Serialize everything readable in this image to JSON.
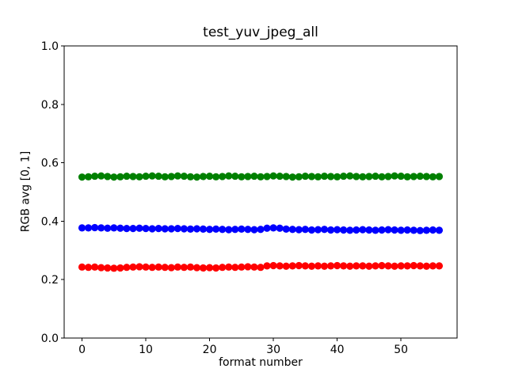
{
  "chart_data": {
    "type": "scatter",
    "title": "test_yuv_jpeg_all",
    "xlabel": "format number",
    "ylabel": "RGB avg [0, 1]",
    "xlim": [
      -2.8,
      58.8
    ],
    "ylim": [
      0.0,
      1.0
    ],
    "xticks": [
      "0",
      "10",
      "20",
      "30",
      "40",
      "50"
    ],
    "yticks": [
      "0.0",
      "0.2",
      "0.4",
      "0.6",
      "0.8",
      "1.0"
    ],
    "grid": false,
    "legend": "none",
    "marker": "o",
    "background_color": "#ffffff",
    "axis_color": "#000000",
    "x": [
      0,
      1,
      2,
      3,
      4,
      5,
      6,
      7,
      8,
      9,
      10,
      11,
      12,
      13,
      14,
      15,
      16,
      17,
      18,
      19,
      20,
      21,
      22,
      23,
      24,
      25,
      26,
      27,
      28,
      29,
      30,
      31,
      32,
      33,
      34,
      35,
      36,
      37,
      38,
      39,
      40,
      41,
      42,
      43,
      44,
      45,
      46,
      47,
      48,
      49,
      50,
      51,
      52,
      53,
      54,
      55,
      56
    ],
    "series": [
      {
        "name": "green",
        "color": "#008000",
        "values": [
          0.551,
          0.552,
          0.554,
          0.555,
          0.553,
          0.551,
          0.552,
          0.554,
          0.553,
          0.552,
          0.554,
          0.555,
          0.554,
          0.552,
          0.553,
          0.555,
          0.554,
          0.552,
          0.551,
          0.553,
          0.554,
          0.552,
          0.553,
          0.555,
          0.554,
          0.552,
          0.553,
          0.554,
          0.552,
          0.553,
          0.555,
          0.554,
          0.553,
          0.551,
          0.552,
          0.554,
          0.553,
          0.552,
          0.554,
          0.553,
          0.552,
          0.554,
          0.555,
          0.553,
          0.552,
          0.553,
          0.554,
          0.552,
          0.553,
          0.555,
          0.554,
          0.552,
          0.553,
          0.554,
          0.553,
          0.552,
          0.553
        ]
      },
      {
        "name": "blue",
        "color": "#0000ff",
        "values": [
          0.377,
          0.377,
          0.378,
          0.377,
          0.376,
          0.377,
          0.376,
          0.375,
          0.375,
          0.376,
          0.375,
          0.374,
          0.375,
          0.374,
          0.374,
          0.375,
          0.374,
          0.373,
          0.374,
          0.373,
          0.372,
          0.373,
          0.372,
          0.371,
          0.372,
          0.373,
          0.372,
          0.371,
          0.372,
          0.376,
          0.377,
          0.376,
          0.373,
          0.372,
          0.371,
          0.372,
          0.37,
          0.371,
          0.372,
          0.37,
          0.371,
          0.37,
          0.369,
          0.37,
          0.371,
          0.37,
          0.369,
          0.37,
          0.371,
          0.37,
          0.369,
          0.37,
          0.369,
          0.368,
          0.369,
          0.37,
          0.369
        ]
      },
      {
        "name": "red",
        "color": "#ff0000",
        "values": [
          0.243,
          0.242,
          0.243,
          0.241,
          0.24,
          0.239,
          0.24,
          0.242,
          0.243,
          0.244,
          0.243,
          0.242,
          0.243,
          0.242,
          0.241,
          0.243,
          0.242,
          0.243,
          0.241,
          0.24,
          0.241,
          0.24,
          0.242,
          0.243,
          0.242,
          0.243,
          0.244,
          0.243,
          0.242,
          0.247,
          0.248,
          0.247,
          0.246,
          0.247,
          0.248,
          0.247,
          0.246,
          0.247,
          0.246,
          0.247,
          0.248,
          0.247,
          0.246,
          0.247,
          0.247,
          0.246,
          0.247,
          0.248,
          0.247,
          0.246,
          0.247,
          0.247,
          0.248,
          0.247,
          0.246,
          0.247,
          0.247
        ]
      }
    ]
  }
}
